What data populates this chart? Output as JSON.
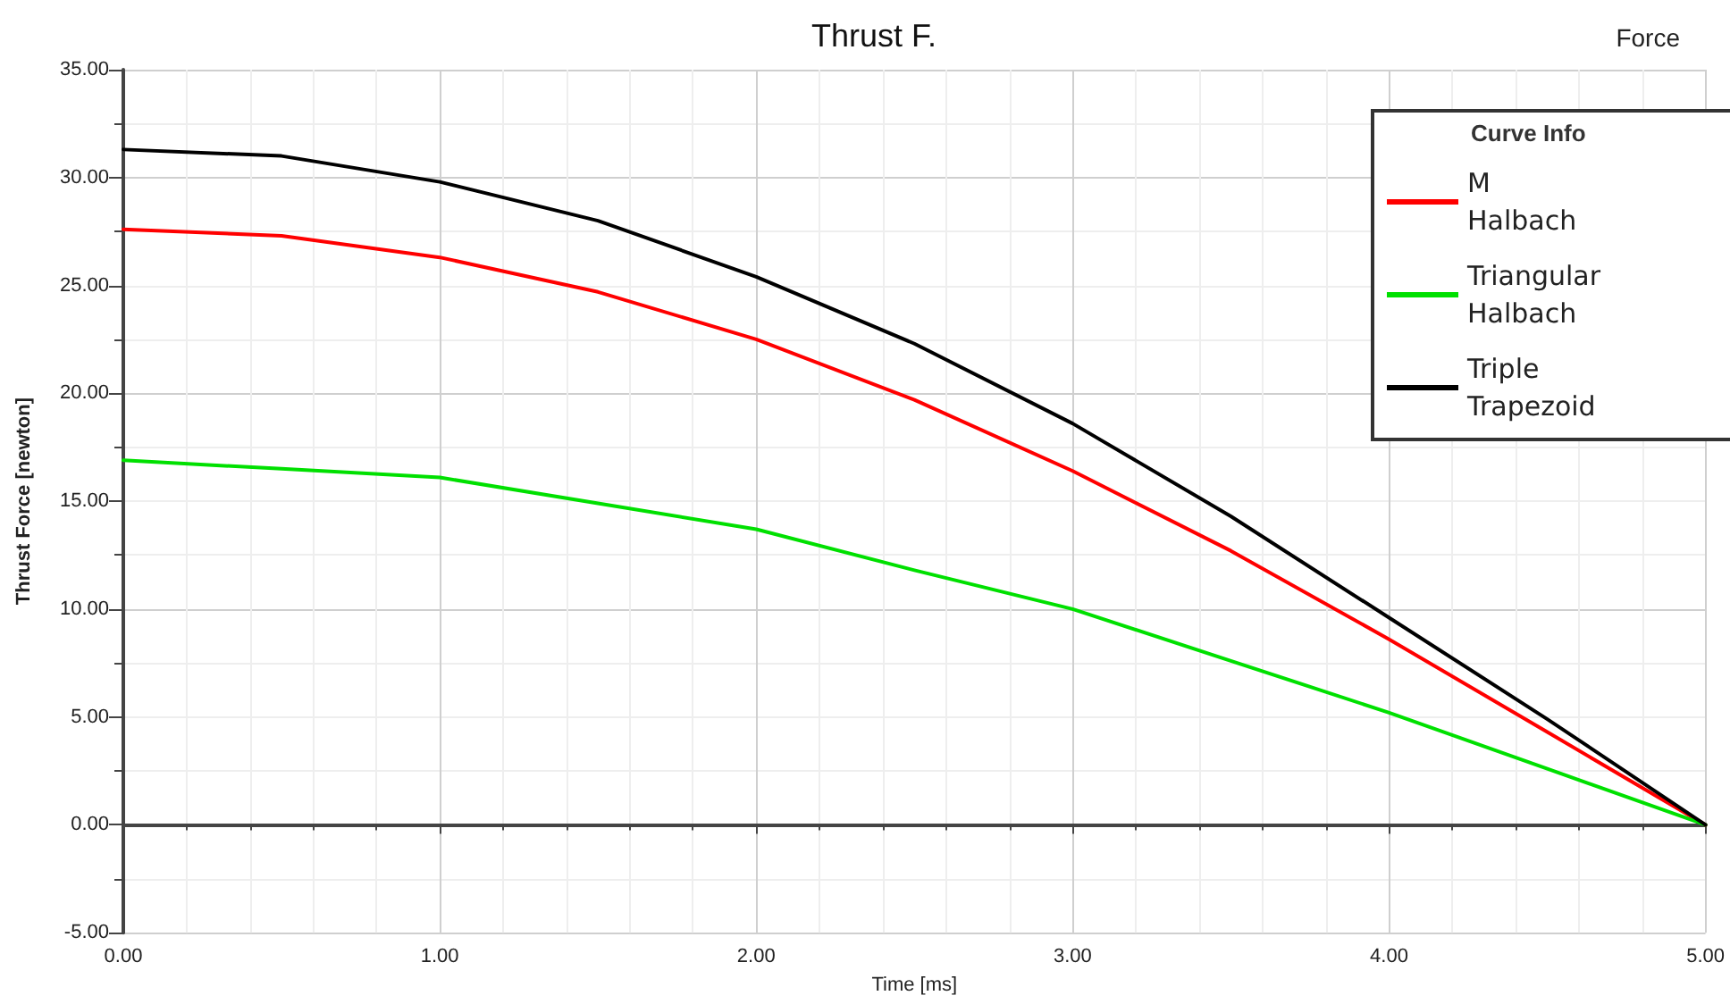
{
  "chart_data": {
    "type": "line",
    "title": "Thrust F.",
    "xlabel": "Time [ms]",
    "ylabel": "Thrust Force [newton]",
    "legend_title": "Curve Info",
    "annotations": [
      "Force"
    ],
    "x": [
      0,
      0.5,
      1,
      1.5,
      2,
      2.5,
      3,
      3.5,
      4,
      4.5,
      5
    ],
    "series": [
      {
        "name": "M Halbach",
        "color": "#ff0000",
        "values": [
          27.6,
          27.3,
          26.3,
          24.7,
          22.5,
          19.7,
          16.4,
          12.7,
          8.6,
          4.3,
          0
        ]
      },
      {
        "name": "Triangular Halbach",
        "color": "#00e000",
        "values": [
          16.9,
          16.5,
          16.1,
          14.9,
          13.7,
          11.8,
          10.0,
          7.6,
          5.2,
          2.6,
          0
        ]
      },
      {
        "name": "Triple Trapezoid",
        "color": "#000000",
        "values": [
          31.3,
          31.0,
          29.8,
          28.0,
          25.4,
          22.3,
          18.6,
          14.3,
          9.6,
          4.9,
          0
        ]
      }
    ],
    "xlim": [
      0,
      5
    ],
    "xticks": [
      {
        "value": 0,
        "label": "0.00"
      },
      {
        "value": 1,
        "label": "1.00"
      },
      {
        "value": 2,
        "label": "2.00"
      },
      {
        "value": 3,
        "label": "3.00"
      },
      {
        "value": 4,
        "label": "4.00"
      },
      {
        "value": 5,
        "label": "5.00"
      }
    ],
    "ylim": [
      -5,
      35
    ],
    "yticks": [
      {
        "value": -5,
        "label": "-5.00"
      },
      {
        "value": 0,
        "label": "0.00"
      },
      {
        "value": 5,
        "label": "5.00"
      },
      {
        "value": 10,
        "label": "10.00"
      },
      {
        "value": 15,
        "label": "15.00"
      },
      {
        "value": 20,
        "label": "20.00"
      },
      {
        "value": 25,
        "label": "25.00"
      },
      {
        "value": 30,
        "label": "30.00"
      },
      {
        "value": 35,
        "label": "35.00"
      }
    ],
    "grid": true,
    "legend": "top right",
    "marker": "none",
    "line_style": "solid"
  }
}
